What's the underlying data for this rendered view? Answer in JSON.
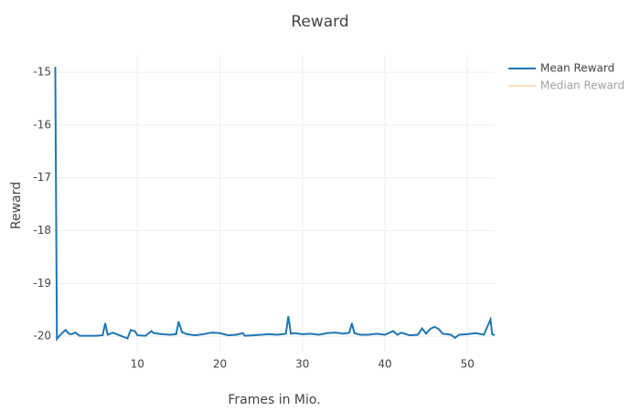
{
  "chart_data": {
    "type": "line",
    "title": "Reward",
    "xlabel": "Frames in Mio.",
    "ylabel": "Reward",
    "x": [
      0.05,
      0.15,
      0.25,
      0.5,
      1.0,
      1.3,
      1.7,
      2.0,
      2.5,
      3,
      4,
      5,
      5.8,
      6.1,
      6.4,
      7,
      8,
      8.8,
      9.2,
      9.7,
      10,
      11,
      11.7,
      12,
      13,
      14,
      14.7,
      15,
      15.4,
      16,
      17,
      18,
      19,
      20,
      21,
      22,
      22.8,
      23,
      24,
      25,
      26,
      27,
      28,
      28.3,
      28.6,
      29,
      30,
      31,
      32,
      33,
      34,
      35,
      35.7,
      36,
      36.3,
      37,
      38,
      39,
      40,
      41,
      41.5,
      42,
      43,
      44,
      44.5,
      45,
      45.5,
      46,
      46.5,
      47,
      48,
      48.5,
      49,
      50,
      51,
      52,
      52.8,
      53,
      53.3
    ],
    "series": [
      {
        "name": "Mean Reward",
        "color": "#1f77b4",
        "values": [
          -14.9,
          -17.5,
          -20.05,
          -20.0,
          -19.92,
          -19.88,
          -19.95,
          -19.96,
          -19.93,
          -19.99,
          -19.99,
          -19.99,
          -19.98,
          -19.75,
          -19.97,
          -19.93,
          -19.99,
          -20.04,
          -19.88,
          -19.9,
          -19.98,
          -19.99,
          -19.9,
          -19.94,
          -19.96,
          -19.97,
          -19.96,
          -19.72,
          -19.92,
          -19.96,
          -19.98,
          -19.96,
          -19.93,
          -19.94,
          -19.98,
          -19.97,
          -19.94,
          -19.99,
          -19.98,
          -19.97,
          -19.96,
          -19.97,
          -19.95,
          -19.62,
          -19.95,
          -19.94,
          -19.96,
          -19.95,
          -19.97,
          -19.94,
          -19.93,
          -19.95,
          -19.93,
          -19.75,
          -19.94,
          -19.97,
          -19.97,
          -19.95,
          -19.97,
          -19.9,
          -19.97,
          -19.93,
          -19.98,
          -19.97,
          -19.85,
          -19.95,
          -19.86,
          -19.82,
          -19.86,
          -19.95,
          -19.97,
          -20.03,
          -19.97,
          -19.96,
          -19.94,
          -19.97,
          -19.68,
          -19.96,
          -19.98
        ]
      },
      {
        "name": "Median Reward",
        "color": "#ffbb78",
        "visible": "legendonly"
      }
    ],
    "xlim": [
      0,
      53.3
    ],
    "ylim": [
      -20.29,
      -14.67
    ],
    "xticks": [
      10,
      20,
      30,
      40,
      50
    ],
    "yticks": [
      -15,
      -16,
      -17,
      -18,
      -19,
      -20
    ],
    "grid": true
  }
}
